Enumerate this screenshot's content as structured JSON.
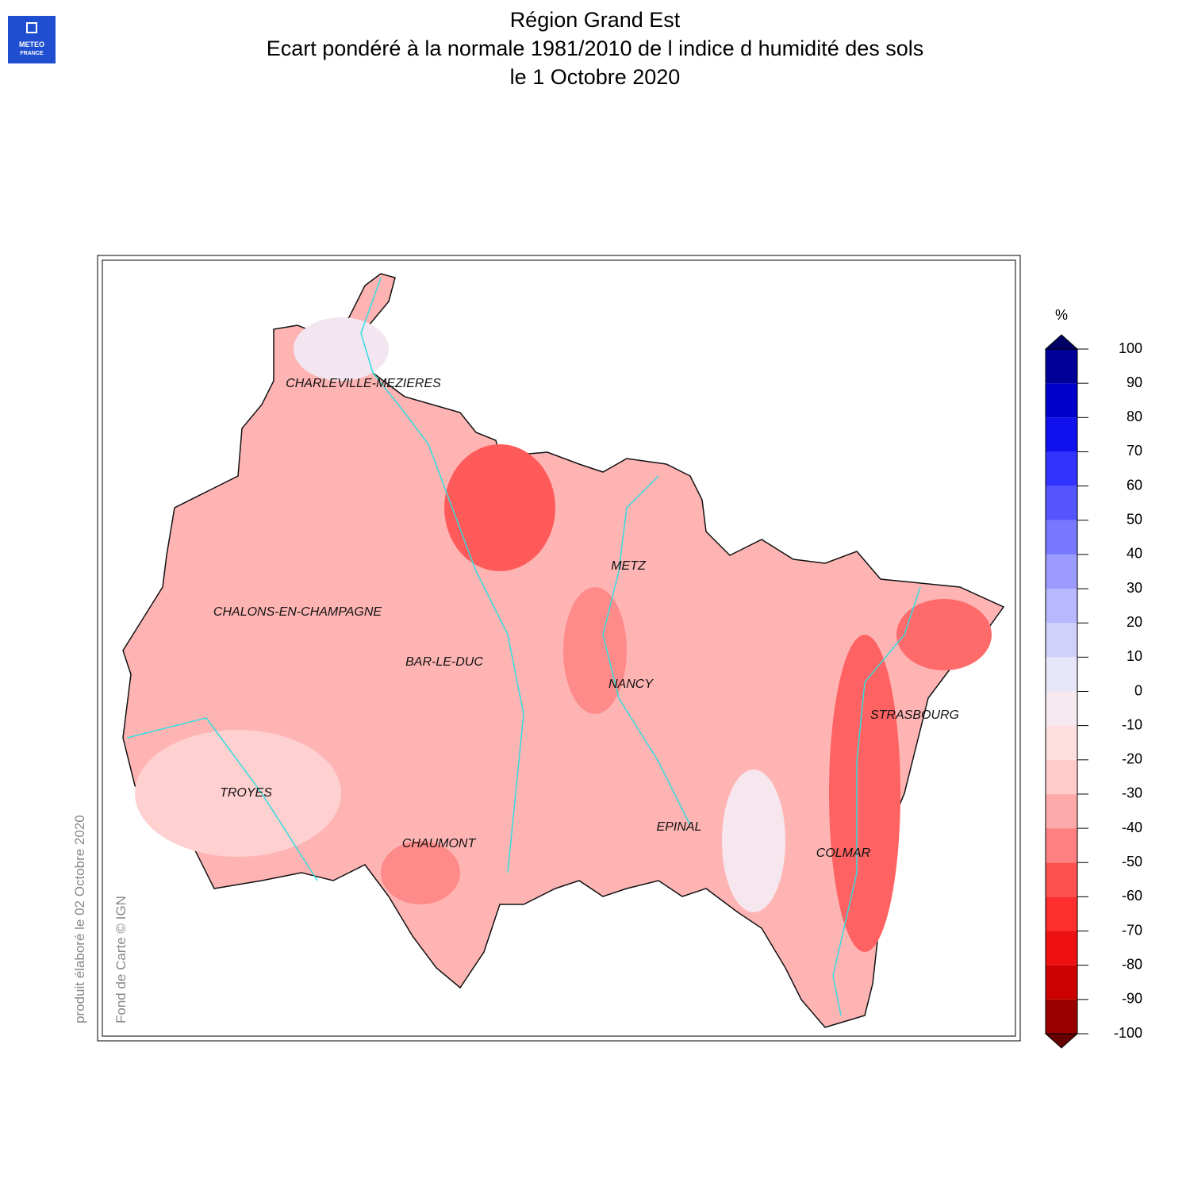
{
  "header": {
    "title": [
      "Région Grand Est",
      "Ecart pondéré à la normale 1981/2010 de l indice d humidité des sols",
      "le 1 Octobre 2020"
    ]
  },
  "logo": [
    "METEO",
    "FRANCE"
  ],
  "legend": {
    "unit": "%",
    "ticks": [
      -100,
      -90,
      -80,
      -70,
      -60,
      -50,
      -40,
      -30,
      -20,
      -10,
      0,
      10,
      20,
      30,
      40,
      50,
      60,
      70,
      80,
      90,
      100
    ],
    "colors": [
      "#990000",
      "#cc0000",
      "#ee1111",
      "#ff2e2e",
      "#ff5050",
      "#ff8080",
      "#ffaaaa",
      "#ffcaca",
      "#ffe0e0",
      "#f6e9f0",
      "#e6e6f8",
      "#d0d0fa",
      "#b8b8ff",
      "#9a9aff",
      "#7777ff",
      "#5555ff",
      "#3333ff",
      "#1111ee",
      "#0000cc",
      "#000099"
    ],
    "under_color": "#660000",
    "over_color": "#000066"
  },
  "cities": [
    "CHARLEVILLE-MEZIERES",
    "CHALONS-EN-CHAMPAGNE",
    "BAR-LE-DUC",
    "METZ",
    "NANCY",
    "STRASBOURG",
    "TROYES",
    "CHAUMONT",
    "EPINAL",
    "COLMAR"
  ],
  "credits": [
    "produit élaboré le 02 Octobre 2020",
    "Fond de Carte © IGN"
  ]
}
